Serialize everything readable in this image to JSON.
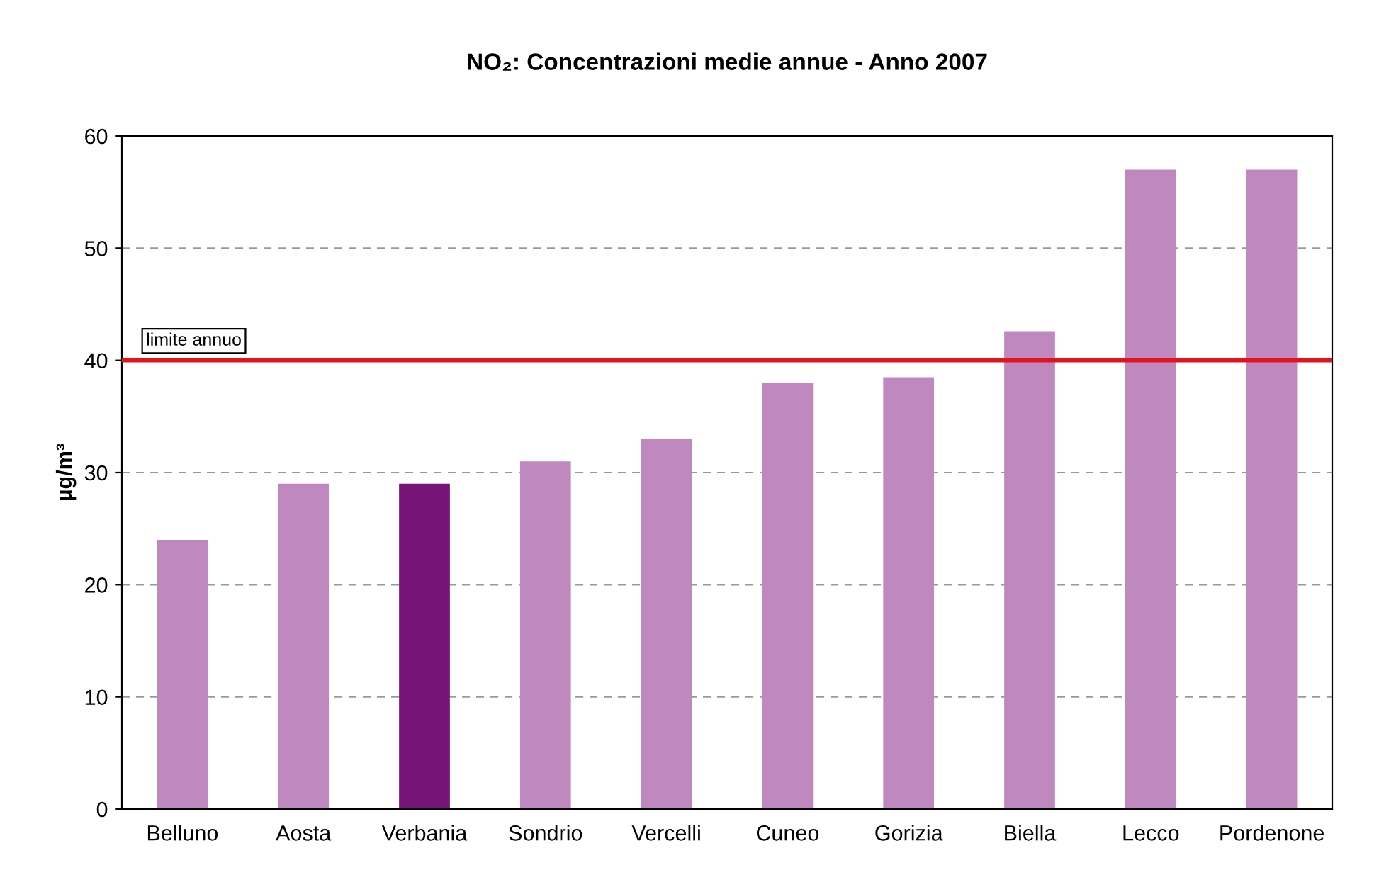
{
  "chart_data": {
    "type": "bar",
    "title": "NO₂: Concentrazioni medie annue - Anno 2007",
    "ylabel": "µg/m³",
    "categories": [
      "Belluno",
      "Aosta",
      "Verbania",
      "Sondrio",
      "Vercelli",
      "Cuneo",
      "Gorizia",
      "Biella",
      "Lecco",
      "Pordenone"
    ],
    "values": [
      24,
      29,
      29,
      31,
      33,
      38,
      38.5,
      42.6,
      57,
      57
    ],
    "colors": [
      "#bf88bf",
      "#bf88bf",
      "#771477",
      "#bf88bf",
      "#bf88bf",
      "#bf88bf",
      "#bf88bf",
      "#bf88bf",
      "#bf88bf",
      "#bf88bf"
    ],
    "ylim": [
      0,
      60
    ],
    "yticks": [
      0,
      10,
      20,
      30,
      40,
      50,
      60
    ],
    "grid": "y",
    "ref_lines": [
      {
        "axis": "y",
        "value": 40,
        "label": "limite annuo",
        "color": "#e0141e",
        "line_style": "solid"
      }
    ]
  }
}
